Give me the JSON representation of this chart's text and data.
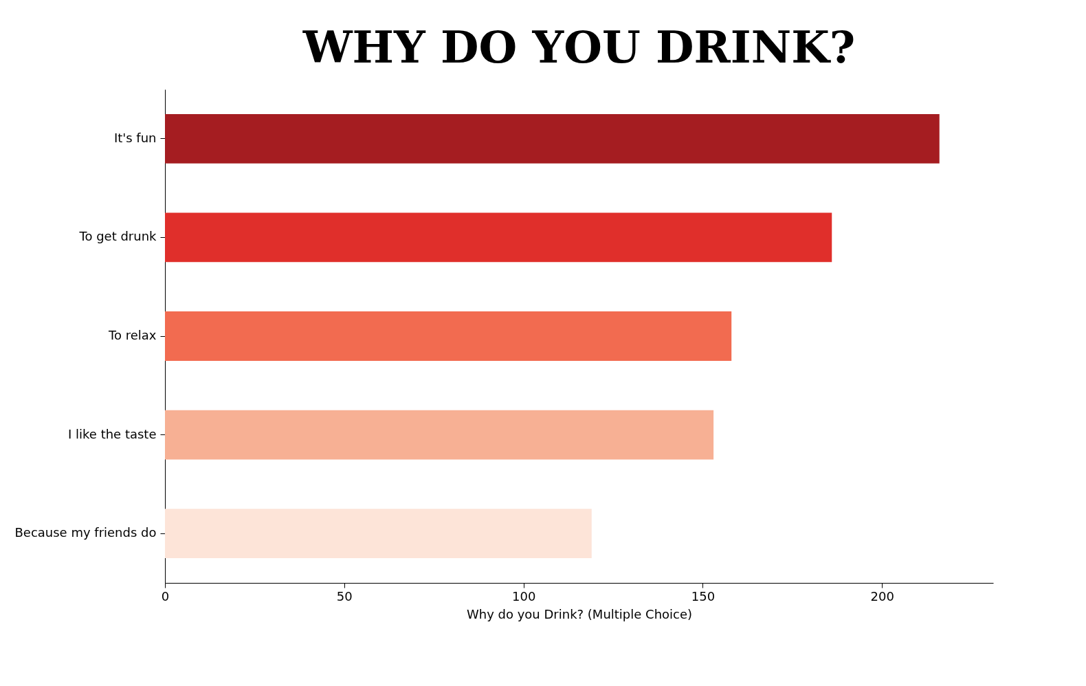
{
  "chart_data": {
    "type": "bar",
    "title": "WHY DO YOU DRINK?",
    "xlabel": "Why do you Drink? (Multiple Choice)",
    "orientation": "horizontal",
    "categories": [
      "It's fun",
      "To get drunk",
      "To relax",
      "I like the taste",
      "Because my friends do"
    ],
    "values": [
      216,
      186,
      158,
      153,
      119
    ],
    "colors": [
      "#a51d21",
      "#e02f2b",
      "#f26b50",
      "#f7b094",
      "#fde4d8"
    ],
    "xlim": [
      0,
      231
    ],
    "xticks": [
      0,
      50,
      100,
      150,
      200
    ],
    "grid": false,
    "legend": false
  }
}
